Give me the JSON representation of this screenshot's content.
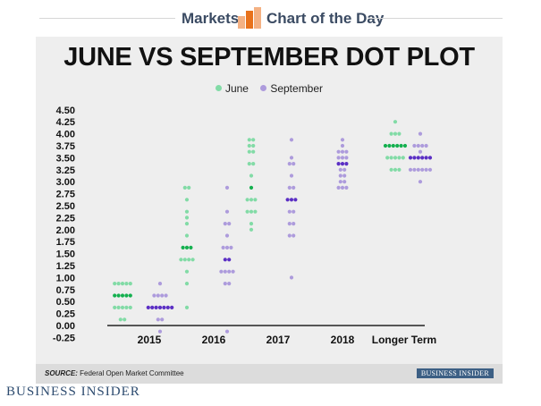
{
  "header": {
    "markets": "Markets",
    "chart_of_day": "Chart of the Day",
    "accent": "#e8721c"
  },
  "footer": {
    "source_label": "SOURCE:",
    "source_text": " Federal Open Market Committee",
    "badge": "BUSINESS INSIDER"
  },
  "brand": "BUSINESS INSIDER",
  "colors": {
    "june": "#82dba6",
    "june_median": "#14b04f",
    "sept": "#ad9bdc",
    "sept_median": "#5b2fc4"
  },
  "chart_data": {
    "type": "scatter",
    "title": "JUNE VS SEPTEMBER DOT PLOT",
    "xlabel": "",
    "ylabel": "",
    "categories": [
      "2015",
      "2016",
      "2017",
      "2018",
      "Longer Term"
    ],
    "ylim": [
      -0.25,
      4.5
    ],
    "yticks": [
      "4.50",
      "4.25",
      "4.00",
      "3.75",
      "3.50",
      "3.25",
      "3.00",
      "2.75",
      "2.50",
      "2.25",
      "2.00",
      "1.75",
      "1.50",
      "1.25",
      "1.00",
      "0.75",
      "0.50",
      "0.25",
      "0.00",
      "-0.25"
    ],
    "legend": "top-center",
    "series": [
      {
        "name": "June",
        "points": [
          {
            "category": "2015",
            "dots": [
              [
                0.875,
                5
              ],
              [
                0.625,
                5
              ],
              [
                0.375,
                5
              ],
              [
                0.125,
                2
              ]
            ],
            "median": 0.625
          },
          {
            "category": "2016",
            "dots": [
              [
                2.875,
                2
              ],
              [
                2.625,
                1
              ],
              [
                2.375,
                1
              ],
              [
                2.25,
                1
              ],
              [
                2.125,
                1
              ],
              [
                1.875,
                1
              ],
              [
                1.625,
                3
              ],
              [
                1.375,
                4
              ],
              [
                1.125,
                1
              ],
              [
                0.875,
                1
              ],
              [
                0.375,
                1
              ]
            ],
            "median": 1.625
          },
          {
            "category": "2017",
            "dots": [
              [
                3.875,
                2
              ],
              [
                3.75,
                2
              ],
              [
                3.625,
                2
              ],
              [
                3.375,
                2
              ],
              [
                3.125,
                1
              ],
              [
                2.875,
                1
              ],
              [
                2.625,
                3
              ],
              [
                2.375,
                3
              ],
              [
                2.125,
                1
              ],
              [
                2.0,
                1
              ]
            ],
            "median": 2.875
          }
        ]
      },
      {
        "name": "September",
        "points": [
          {
            "category": "2015",
            "dots": [
              [
                0.875,
                1
              ],
              [
                0.625,
                4
              ],
              [
                0.375,
                7
              ],
              [
                0.125,
                2
              ],
              [
                -0.125,
                1
              ]
            ],
            "median": 0.375
          },
          {
            "category": "2016",
            "dots": [
              [
                2.875,
                1
              ],
              [
                2.375,
                1
              ],
              [
                2.125,
                2
              ],
              [
                1.875,
                1
              ],
              [
                1.625,
                3
              ],
              [
                1.375,
                2
              ],
              [
                1.125,
                4
              ],
              [
                0.875,
                2
              ],
              [
                -0.125,
                1
              ]
            ],
            "median": 1.375
          },
          {
            "category": "2017",
            "dots": [
              [
                3.875,
                1
              ],
              [
                3.5,
                1
              ],
              [
                3.375,
                2
              ],
              [
                3.125,
                1
              ],
              [
                2.875,
                2
              ],
              [
                2.625,
                3
              ],
              [
                2.375,
                2
              ],
              [
                2.125,
                2
              ],
              [
                1.875,
                2
              ],
              [
                1.0,
                1
              ]
            ],
            "median": 2.625
          },
          {
            "category": "2018",
            "dots": [
              [
                3.875,
                1
              ],
              [
                3.75,
                1
              ],
              [
                3.625,
                3
              ],
              [
                3.5,
                3
              ],
              [
                3.375,
                3
              ],
              [
                3.25,
                2
              ],
              [
                3.125,
                2
              ],
              [
                3.0,
                2
              ],
              [
                2.875,
                3
              ]
            ],
            "median": 3.375
          },
          {
            "category": "Longer Term",
            "dots": [
              [
                4.25,
                1
              ],
              [
                4.0,
                3
              ],
              [
                3.75,
                6
              ],
              [
                3.5,
                5
              ],
              [
                3.25,
                3
              ]
            ],
            "median": 3.75
          },
          {
            "category": "Longer Term",
            "dots": [
              [
                4.0,
                1
              ],
              [
                3.75,
                4
              ],
              [
                3.625,
                1
              ],
              [
                3.5,
                6
              ],
              [
                3.25,
                6
              ],
              [
                3.0,
                1
              ]
            ],
            "median": 3.5
          }
        ]
      }
    ]
  }
}
